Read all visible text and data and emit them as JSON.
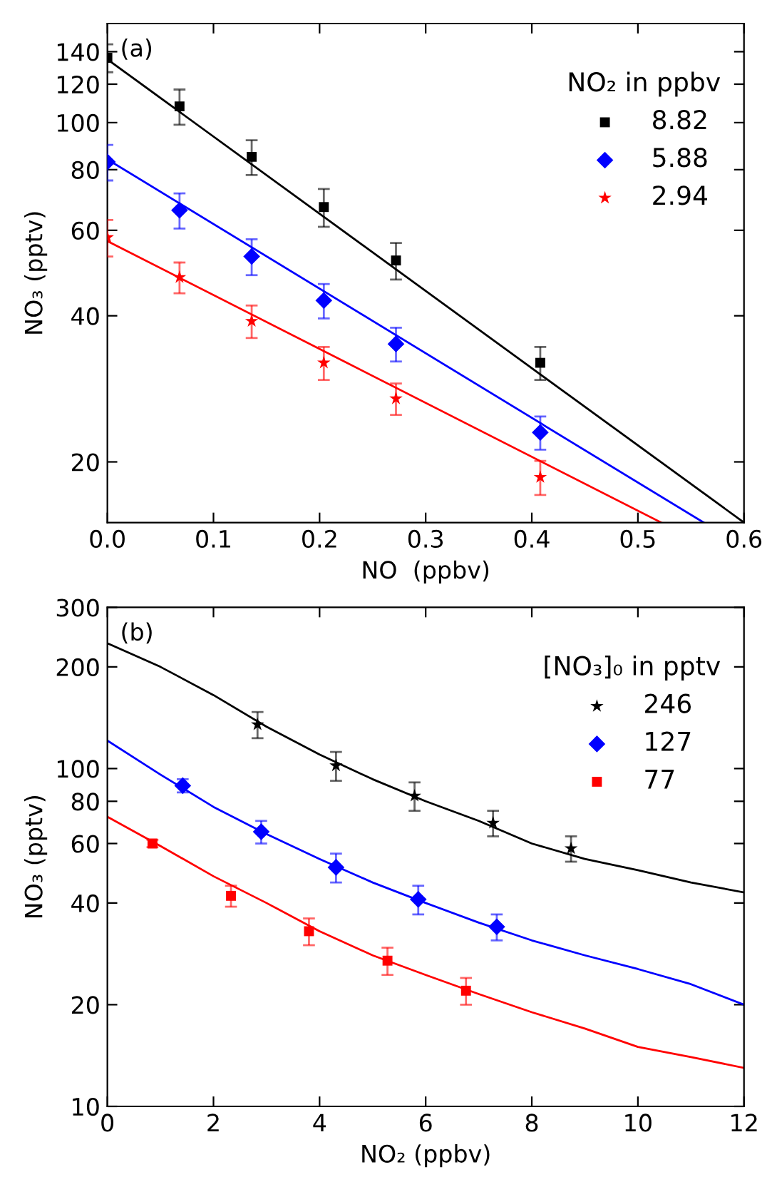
{
  "chart_data": [
    {
      "type": "scatter",
      "xlabel": "NO  (ppbv)",
      "ylabel": "NO₃ (pptv)",
      "legend_title": "NO₂ in ppbv",
      "annotations": [
        "(a)"
      ],
      "log": "y",
      "grid": false,
      "legend": "top right",
      "xlim": [
        0,
        0.6
      ],
      "ylim": [
        15,
        160
      ],
      "xticks": [
        {
          "value": 0.0,
          "label": "0.0"
        },
        0.1,
        0.2,
        0.3,
        0.4,
        0.5,
        0.6
      ],
      "yticks": [
        20,
        40,
        60,
        80,
        100,
        120,
        140
      ],
      "series": [
        {
          "name": "8.82",
          "color": "#000000",
          "marker": "square",
          "x": [
            0,
            0.068,
            0.136,
            0.204,
            0.272,
            0.408
          ],
          "values": [
            136,
            108,
            85,
            67,
            52,
            32
          ],
          "errors": [
            9,
            9,
            7,
            6,
            4.5,
            2.5
          ]
        },
        {
          "name": "5.88",
          "color": "#0000ff",
          "marker": "diamond",
          "x": [
            0,
            0.068,
            0.136,
            0.204,
            0.272,
            0.408
          ],
          "values": [
            83,
            66,
            53,
            43,
            35,
            23
          ],
          "errors": [
            7,
            5.5,
            4.5,
            3.5,
            2.8,
            1.8
          ]
        },
        {
          "name": "2.94",
          "color": "#ff0000",
          "marker": "star",
          "x": [
            0,
            0.068,
            0.136,
            0.204,
            0.272,
            0.408
          ],
          "values": [
            58,
            48,
            39,
            32,
            27,
            18.6
          ],
          "errors": [
            5,
            3.5,
            3,
            2.5,
            2,
            1.5
          ]
        },
        {
          "type": "line",
          "color": "#000000",
          "x": [
            0,
            0.6
          ],
          "values": [
            135,
            15
          ]
        },
        {
          "type": "line",
          "color": "#0000ff",
          "x": [
            0,
            0.562
          ],
          "values": [
            84,
            15
          ]
        },
        {
          "type": "line",
          "color": "#ff0000",
          "x": [
            0,
            0.522
          ],
          "values": [
            57,
            15
          ]
        }
      ]
    },
    {
      "type": "scatter",
      "xlabel": "NO₂ (ppbv)",
      "ylabel": "NO₃ (pptv)",
      "legend_title": "[NO₃]₀ in pptv",
      "annotations": [
        "(b)"
      ],
      "log": "y",
      "grid": false,
      "legend": "top right",
      "xlim": [
        0,
        12
      ],
      "ylim": [
        10,
        300
      ],
      "xticks": [
        0,
        2,
        4,
        6,
        8,
        10,
        12
      ],
      "yticks": [
        10,
        20,
        40,
        60,
        80,
        100,
        200,
        300
      ],
      "series": [
        {
          "name": "246",
          "color": "#000000",
          "marker": "star",
          "x": [
            2.83,
            4.31,
            5.79,
            7.27,
            8.74
          ],
          "values": [
            135,
            102,
            83,
            69,
            58
          ],
          "errors": [
            12,
            10,
            8,
            6,
            5
          ]
        },
        {
          "name": "127",
          "color": "#0000ff",
          "marker": "diamond",
          "x": [
            1.42,
            2.9,
            4.31,
            5.86,
            7.34
          ],
          "values": [
            89,
            65,
            51,
            41,
            34
          ],
          "errors": [
            4,
            5,
            5,
            4,
            3
          ]
        },
        {
          "name": "77",
          "color": "#ff0000",
          "marker": "square",
          "x": [
            0.85,
            2.33,
            3.8,
            5.28,
            6.76
          ],
          "values": [
            60,
            42,
            33,
            27,
            22
          ],
          "errors": [
            1.5,
            3,
            3,
            2.5,
            2
          ]
        },
        {
          "type": "line",
          "color": "#000000",
          "x": [
            0,
            1,
            2,
            3,
            4,
            5,
            6,
            7,
            8,
            9,
            10,
            11,
            12
          ],
          "values": [
            235,
            200,
            165,
            133,
            110,
            93,
            80,
            70,
            60,
            54,
            50,
            46,
            43
          ]
        },
        {
          "type": "line",
          "color": "#0000ff",
          "x": [
            0,
            1,
            2,
            3,
            4,
            5,
            6,
            7,
            8,
            9,
            10,
            11,
            12
          ],
          "values": [
            121,
            96,
            77,
            64,
            54,
            46,
            40,
            35,
            31,
            28,
            25.5,
            23,
            20
          ]
        },
        {
          "type": "line",
          "color": "#ff0000",
          "x": [
            0,
            1,
            2,
            3,
            4,
            5,
            6,
            7,
            8,
            9,
            10,
            11,
            12
          ],
          "values": [
            72,
            59,
            48,
            40,
            33,
            28,
            24.5,
            21.5,
            19,
            17,
            15,
            14,
            13
          ]
        }
      ]
    }
  ]
}
